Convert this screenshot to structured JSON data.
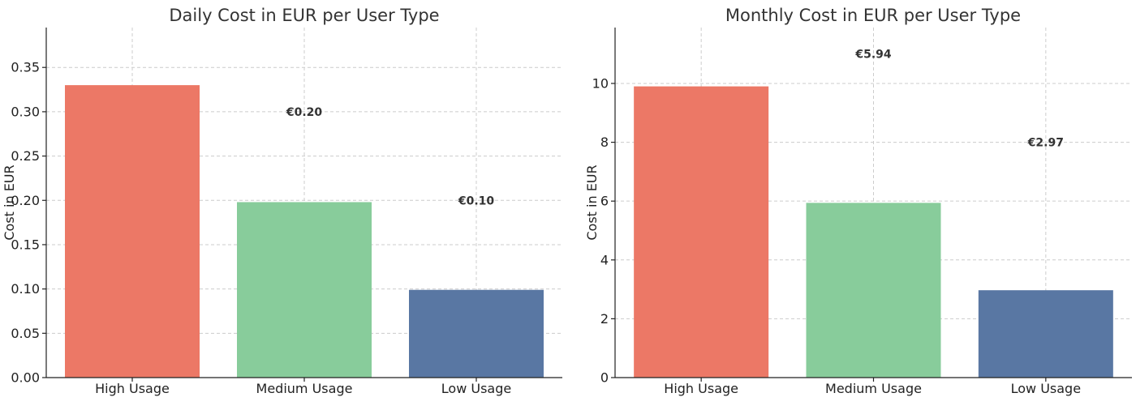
{
  "chart_data": [
    {
      "type": "bar",
      "title": "Daily Cost in EUR per User Type",
      "ylabel": "Cost in EUR",
      "xlabel": "",
      "categories": [
        "High Usage",
        "Medium Usage",
        "Low Usage"
      ],
      "values": [
        0.33,
        0.198,
        0.099
      ],
      "value_labels": [
        "",
        "€0.20",
        "€0.10"
      ],
      "value_label_y": [
        null,
        0.3,
        0.2
      ],
      "ylim": [
        0,
        0.395
      ],
      "yticks": [
        0.0,
        0.05,
        0.1,
        0.15,
        0.2,
        0.25,
        0.3,
        0.35
      ],
      "ytick_labels": [
        "0.00",
        "0.05",
        "0.10",
        "0.15",
        "0.20",
        "0.25",
        "0.30",
        "0.35"
      ],
      "colors": [
        "#ec7866",
        "#88cc9b",
        "#5977a3"
      ],
      "grid": true,
      "legend": "none"
    },
    {
      "type": "bar",
      "title": "Monthly Cost in EUR per User Type",
      "ylabel": "Cost in EUR",
      "xlabel": "",
      "categories": [
        "High Usage",
        "Medium Usage",
        "Low Usage"
      ],
      "values": [
        9.9,
        5.94,
        2.97
      ],
      "value_labels": [
        "",
        "€5.94",
        "€2.97"
      ],
      "value_label_y": [
        null,
        11.0,
        8.0
      ],
      "ylim": [
        0,
        11.9
      ],
      "yticks": [
        0,
        2,
        4,
        6,
        8,
        10
      ],
      "ytick_labels": [
        "0",
        "2",
        "4",
        "6",
        "8",
        "10"
      ],
      "colors": [
        "#ec7866",
        "#88cc9b",
        "#5977a3"
      ],
      "grid": true,
      "legend": "none"
    }
  ]
}
